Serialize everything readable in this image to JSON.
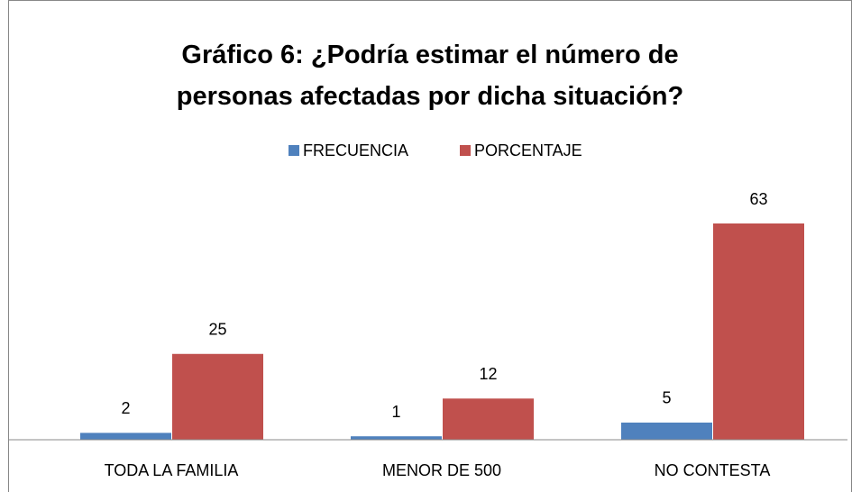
{
  "chart_data": {
    "type": "bar",
    "title": "Gráfico 6: ¿Podría estimar el número de personas afectadas por dicha situación?",
    "categories": [
      "TODA LA FAMILIA",
      "MENOR DE 500",
      "NO CONTESTA"
    ],
    "series": [
      {
        "name": "FRECUENCIA",
        "color": "#4f81bd",
        "values": [
          2,
          1,
          5
        ]
      },
      {
        "name": "PORCENTAJE",
        "color": "#c0504d",
        "values": [
          25,
          12,
          63
        ]
      }
    ]
  }
}
